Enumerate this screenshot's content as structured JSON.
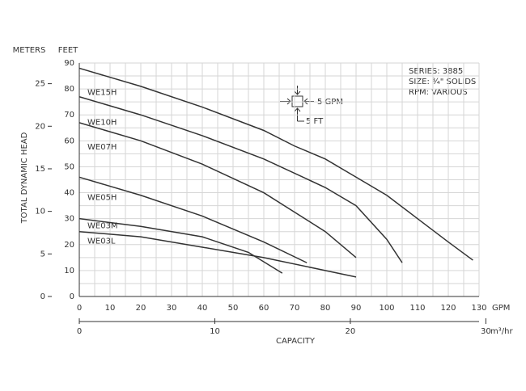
{
  "chart_data": {
    "type": "line",
    "y_label": "TOTAL DYNAMIC HEAD",
    "x_label": "CAPACITY",
    "y_unit": "FEET",
    "y2_unit": "METERS",
    "x_unit": "GPM",
    "x2_unit": "m³/hr",
    "xlim": [
      0,
      130
    ],
    "xticks": [
      0,
      10,
      20,
      30,
      40,
      50,
      60,
      70,
      80,
      90,
      100,
      110,
      120,
      130
    ],
    "x2lim": [
      0,
      29.5
    ],
    "x2ticks": [
      0,
      10,
      20,
      30
    ],
    "ylim": [
      0,
      90
    ],
    "yticks": [
      0,
      10,
      20,
      30,
      40,
      50,
      60,
      70,
      80,
      90
    ],
    "y2lim": [
      0,
      27.43
    ],
    "y2ticks": [
      0,
      5,
      10,
      15,
      20,
      25
    ],
    "grid": true,
    "grid_x": [
      0,
      5,
      10,
      15,
      20,
      25,
      30,
      35,
      40,
      45,
      50,
      55,
      60,
      65,
      70,
      75,
      80,
      85,
      90,
      95,
      100,
      105,
      110,
      115,
      120,
      125,
      130
    ],
    "grid_y": [
      0,
      5,
      10,
      15,
      20,
      25,
      30,
      35,
      40,
      45,
      50,
      55,
      60,
      65,
      70,
      75,
      80,
      85,
      90
    ],
    "info": [
      "SERIES: 3885",
      "SIZE: ¾\" SOLIDS",
      "RPM: VARIOUS"
    ],
    "scale_key": {
      "x": "5 GPM",
      "y": "5 FT"
    },
    "series": [
      {
        "name": "WE15H",
        "color": "#333333",
        "x": [
          0,
          20,
          40,
          60,
          70,
          80,
          90,
          100,
          110,
          120,
          128
        ],
        "values": [
          88,
          81,
          73,
          64,
          58,
          53,
          46,
          39,
          30,
          21,
          14
        ]
      },
      {
        "name": "WE10H",
        "color": "#333333",
        "x": [
          0,
          20,
          40,
          60,
          80,
          90,
          100,
          105
        ],
        "values": [
          77,
          70,
          62,
          53,
          42,
          35,
          22,
          13
        ]
      },
      {
        "name": "WE07H",
        "color": "#333333",
        "x": [
          0,
          20,
          40,
          60,
          80,
          90
        ],
        "values": [
          67,
          60,
          51,
          40,
          25,
          15
        ]
      },
      {
        "name": "WE05H",
        "color": "#333333",
        "x": [
          0,
          20,
          40,
          60,
          74
        ],
        "values": [
          46,
          39,
          31,
          21,
          13
        ]
      },
      {
        "name": "WE03M",
        "color": "#333333",
        "x": [
          0,
          20,
          40,
          55,
          66
        ],
        "values": [
          30,
          27,
          23,
          17,
          9
        ]
      },
      {
        "name": "WE03L",
        "color": "#333333",
        "x": [
          0,
          20,
          40,
          60,
          80,
          90
        ],
        "values": [
          25,
          23,
          19,
          15,
          10,
          7.5
        ]
      }
    ]
  }
}
